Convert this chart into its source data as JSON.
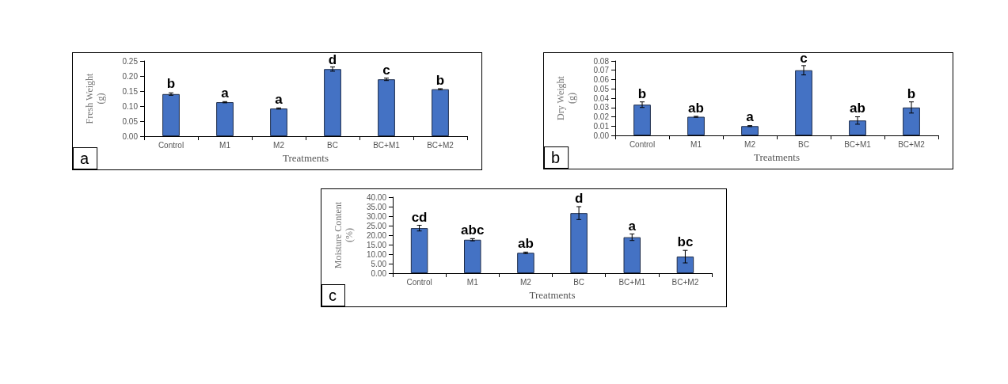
{
  "chart_data": [
    {
      "type": "bar",
      "xlabel": "Treatments",
      "ylabel": "Fresh Weight\n(g)",
      "categories": [
        "Control",
        "M1",
        "M2",
        "BC",
        "BC+M1",
        "BC+M2"
      ],
      "color": "#4472c4",
      "values": [
        0.14,
        0.113,
        0.092,
        0.223,
        0.189,
        0.156
      ],
      "errors": [
        0.004,
        0.002,
        0.002,
        0.007,
        0.004,
        0.002
      ],
      "ylim": [
        0,
        0.25
      ],
      "yticks": [
        {
          "value": 0,
          "label": "0.00"
        },
        {
          "value": 0.05,
          "label": "0.05"
        },
        {
          "value": 0.1,
          "label": "0.10"
        },
        {
          "value": 0.15,
          "label": "0.15"
        },
        {
          "value": 0.2,
          "label": "0.20"
        },
        {
          "value": 0.25,
          "label": "0.25"
        }
      ],
      "annotations": [
        "a",
        {
          "text": "b",
          "x": "Control",
          "y": 0.152
        },
        {
          "text": "a",
          "x": "M1",
          "y": 0.12
        },
        {
          "text": "a",
          "x": "M2",
          "y": 0.099
        },
        {
          "text": "d",
          "x": "BC",
          "y": 0.232
        },
        {
          "text": "c",
          "x": "BC+M1",
          "y": 0.197
        },
        {
          "text": "b",
          "x": "BC+M2",
          "y": 0.163
        }
      ]
    },
    {
      "type": "bar",
      "xlabel": "Treatments",
      "ylabel": "Dry Weight\n(g)",
      "categories": [
        "Control",
        "M1",
        "M2",
        "BC",
        "BC+M1",
        "BC+M2"
      ],
      "color": "#4472c4",
      "values": [
        0.033,
        0.02,
        0.01,
        0.07,
        0.016,
        0.03
      ],
      "errors": [
        0.003,
        0.0005,
        0.0005,
        0.005,
        0.004,
        0.006
      ],
      "ylim": [
        0,
        0.08
      ],
      "yticks": [
        {
          "value": 0,
          "label": "0.00"
        },
        {
          "value": 0.01,
          "label": "0.01"
        },
        {
          "value": 0.02,
          "label": "0.02"
        },
        {
          "value": 0.03,
          "label": "0.03"
        },
        {
          "value": 0.04,
          "label": "0.04"
        },
        {
          "value": 0.05,
          "label": "0.05"
        },
        {
          "value": 0.06,
          "label": "0.06"
        },
        {
          "value": 0.07,
          "label": "0.07"
        },
        {
          "value": 0.08,
          "label": "0.08"
        }
      ],
      "annotations": [
        "b",
        {
          "text": "b",
          "x": "Control",
          "y": 0.0375
        },
        {
          "text": "ab",
          "x": "M1",
          "y": 0.0225
        },
        {
          "text": "a",
          "x": "M2",
          "y": 0.0125
        },
        {
          "text": "c",
          "x": "BC",
          "y": 0.0755
        },
        {
          "text": "ab",
          "x": "BC+M1",
          "y": 0.022
        },
        {
          "text": "b",
          "x": "BC+M2",
          "y": 0.0375
        }
      ]
    },
    {
      "type": "bar",
      "xlabel": "Treatments",
      "ylabel": "Moisture Content\n(%)",
      "categories": [
        "Control",
        "M1",
        "M2",
        "BC",
        "BC+M1",
        "BC+M2"
      ],
      "color": "#4472c4",
      "values": [
        23.7,
        17.6,
        10.7,
        31.6,
        18.9,
        8.7
      ],
      "errors": [
        1.5,
        0.6,
        0.4,
        3.4,
        1.7,
        3.3
      ],
      "ylim": [
        0,
        40
      ],
      "yticks": [
        {
          "value": 0,
          "label": "0.00"
        },
        {
          "value": 5,
          "label": "5.00"
        },
        {
          "value": 10,
          "label": "10.00"
        },
        {
          "value": 15,
          "label": "15.00"
        },
        {
          "value": 20,
          "label": "20.00"
        },
        {
          "value": 25,
          "label": "25.00"
        },
        {
          "value": 30,
          "label": "30.00"
        },
        {
          "value": 35,
          "label": "35.00"
        },
        {
          "value": 40,
          "label": "40.00"
        }
      ],
      "annotations": [
        "c",
        {
          "text": "cd",
          "x": "Control",
          "y": 26
        },
        {
          "text": "abc",
          "x": "M1",
          "y": 19.2
        },
        {
          "text": "ab",
          "x": "M2",
          "y": 12.2
        },
        {
          "text": "d",
          "x": "BC",
          "y": 36
        },
        {
          "text": "a",
          "x": "BC+M1",
          "y": 21.4
        },
        {
          "text": "bc",
          "x": "BC+M2",
          "y": 13
        }
      ]
    }
  ]
}
